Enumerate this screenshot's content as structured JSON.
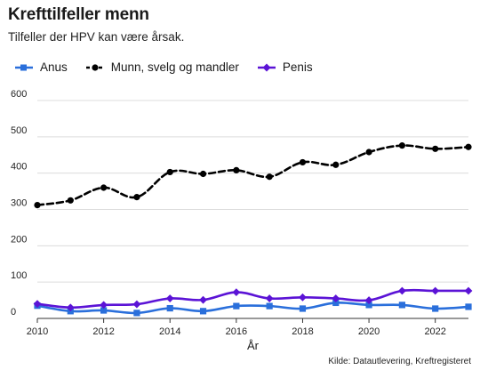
{
  "header": {
    "title": "Krefttilfeller menn",
    "subtitle": "Tilfeller der HPV kan være årsak."
  },
  "source": "Kilde: Datautlevering, Kreftregisteret",
  "chart_data": {
    "type": "line",
    "xlabel": "År",
    "ylabel": "",
    "ylim": [
      0,
      600
    ],
    "xlim": [
      2010,
      2023
    ],
    "yticks": [
      0,
      100,
      200,
      300,
      400,
      500,
      600
    ],
    "xticks": [
      2010,
      2012,
      2014,
      2016,
      2018,
      2020,
      2022
    ],
    "grid": true,
    "legend_position": "top-left",
    "x": [
      2010,
      2011,
      2012,
      2013,
      2014,
      2015,
      2016,
      2017,
      2018,
      2019,
      2020,
      2021,
      2022,
      2023
    ],
    "series": [
      {
        "name": "Anus",
        "color": "#2a6fdb",
        "marker": "square",
        "dash": "solid",
        "values": [
          35,
          20,
          22,
          15,
          28,
          20,
          34,
          34,
          27,
          43,
          37,
          37,
          27,
          32
        ]
      },
      {
        "name": "Munn, svelg og mandler",
        "color": "#000000",
        "marker": "circle",
        "dash": "dashed",
        "values": [
          312,
          325,
          360,
          334,
          403,
          398,
          408,
          390,
          430,
          423,
          458,
          476,
          467,
          472
        ]
      },
      {
        "name": "Penis",
        "color": "#5b13d6",
        "marker": "diamond",
        "dash": "solid",
        "values": [
          40,
          30,
          37,
          39,
          55,
          51,
          72,
          55,
          58,
          55,
          50,
          76,
          76,
          76
        ]
      }
    ]
  }
}
